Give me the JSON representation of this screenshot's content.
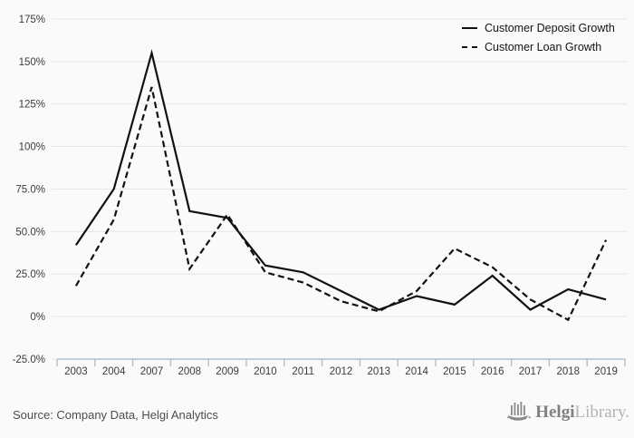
{
  "chart_data": {
    "type": "line",
    "title": "",
    "xlabel": "",
    "ylabel": "",
    "categories": [
      "2003",
      "2004",
      "2007",
      "2008",
      "2009",
      "2010",
      "2011",
      "2012",
      "2013",
      "2014",
      "2015",
      "2016",
      "2017",
      "2018",
      "2019"
    ],
    "series": [
      {
        "name": "Customer Deposit Growth",
        "style": "solid",
        "values": [
          42,
          75,
          155,
          62,
          58,
          30,
          26,
          15,
          4,
          12,
          7,
          24,
          4,
          16,
          10
        ]
      },
      {
        "name": "Customer Loan Growth",
        "style": "dashed",
        "values": [
          18,
          57,
          135,
          28,
          60,
          26,
          20,
          9,
          3,
          15,
          40,
          29,
          10,
          -2,
          45
        ]
      }
    ],
    "ylim": [
      -25,
      175
    ],
    "yticks": [
      {
        "v": 175,
        "label": "175%"
      },
      {
        "v": 150,
        "label": "150%"
      },
      {
        "v": 125,
        "label": "125%"
      },
      {
        "v": 100,
        "label": "100%"
      },
      {
        "v": 75,
        "label": "75.0%"
      },
      {
        "v": 50,
        "label": "50.0%"
      },
      {
        "v": 25,
        "label": "25.0%"
      },
      {
        "v": 0,
        "label": "0%"
      },
      {
        "v": -25,
        "label": "-25.0%"
      }
    ],
    "grid": true,
    "legend_position": "top-right",
    "colors": {
      "line": "#111111",
      "grid": "#e5e5e5",
      "axis": "#b3bdd1",
      "tick_text": "#3c3c3c"
    }
  },
  "footer": {
    "source": "Source: Company Data, Helgi Analytics"
  },
  "logo": {
    "brand_primary": "Helgi",
    "brand_secondary": "Library."
  }
}
